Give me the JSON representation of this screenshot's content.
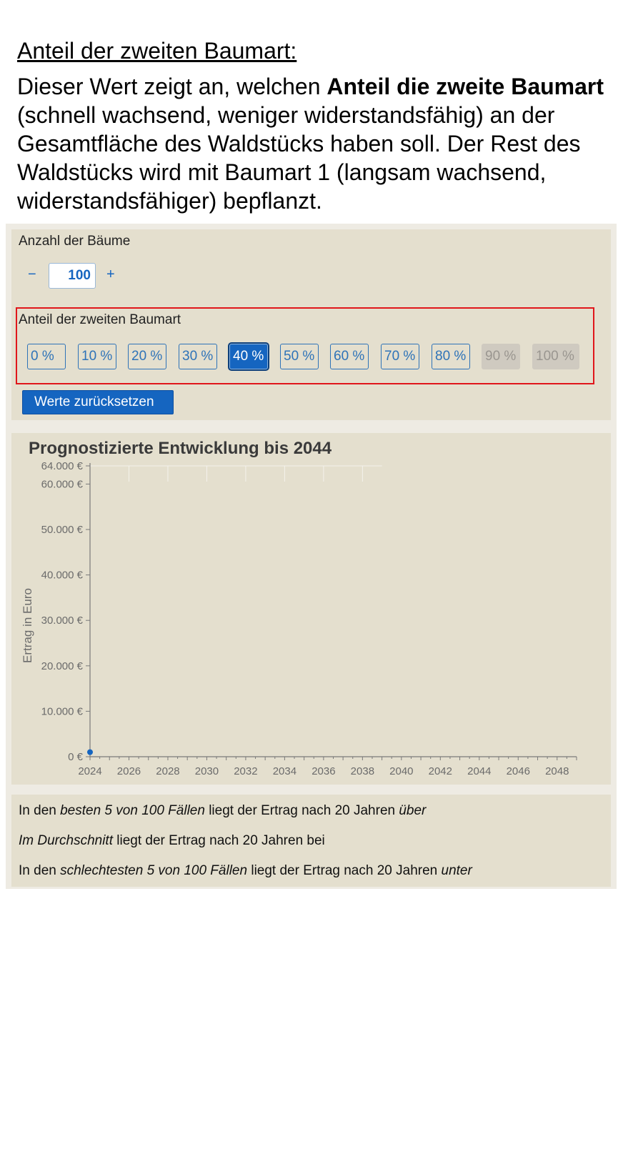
{
  "heading": "Anteil der zweiten Baumart:",
  "intro": {
    "p1": "Dieser Wert zeigt an, welchen ",
    "bold": "Anteil die zweite Baumart",
    "p2": " (schnell wachsend, weniger widerstandsfähig) an der Gesamtfläche des Waldstücks haben soll. Der Rest des Waldstücks wird mit Baumart 1 (langsam wachsend, widerstandsfähiger) bepflanzt."
  },
  "controls": {
    "trees_label": "Anzahl der Bäume",
    "minus": "−",
    "plus": "+",
    "trees_value": "100",
    "share_label": "Anteil der zweiten Baumart",
    "options": [
      {
        "label": "0 %",
        "state": "normal"
      },
      {
        "label": "10 %",
        "state": "normal"
      },
      {
        "label": "20 %",
        "state": "normal"
      },
      {
        "label": "30 %",
        "state": "normal"
      },
      {
        "label": "40 %",
        "state": "active"
      },
      {
        "label": "50 %",
        "state": "normal"
      },
      {
        "label": "60 %",
        "state": "normal"
      },
      {
        "label": "70 %",
        "state": "normal"
      },
      {
        "label": "80 %",
        "state": "normal"
      },
      {
        "label": "90 %",
        "state": "disabled"
      },
      {
        "label": "100 %",
        "state": "disabled"
      }
    ],
    "reset_label": "Werte zurücksetzen"
  },
  "chart_data": {
    "type": "line",
    "title": "Prognostizierte Entwicklung bis 2044",
    "ylabel": "Ertrag in Euro",
    "xlabel": "",
    "xlim": [
      2024,
      2049
    ],
    "ylim": [
      0,
      64000
    ],
    "x_ticks": [
      "2024",
      "2026",
      "2028",
      "2030",
      "2032",
      "2034",
      "2036",
      "2038",
      "2040",
      "2042",
      "2044",
      "2046",
      "2048"
    ],
    "y_ticks": [
      {
        "value": 0,
        "label": "0 €"
      },
      {
        "value": 10000,
        "label": "10.000 €"
      },
      {
        "value": 20000,
        "label": "20.000 €"
      },
      {
        "value": 30000,
        "label": "30.000 €"
      },
      {
        "value": 40000,
        "label": "40.000 €"
      },
      {
        "value": 50000,
        "label": "50.000 €"
      },
      {
        "value": 60000,
        "label": "60.000 €"
      },
      {
        "value": 64000,
        "label": "64.000 €"
      }
    ],
    "points": [
      {
        "x": 2024,
        "y": 1000
      }
    ],
    "point_color": "#1565c0"
  },
  "results": {
    "best_prefix": "In den ",
    "best_em": "besten 5 von 100 Fällen",
    "best_mid": " liegt der Ertrag nach 20 Jahren ",
    "best_em2": "über",
    "avg_em": "Im Durchschnitt",
    "avg_rest": " liegt der Ertrag nach 20 Jahren bei",
    "worst_prefix": "In den ",
    "worst_em": "schlechtesten 5 von 100 Fällen",
    "worst_mid": " liegt der Ertrag nach 20 Jahren ",
    "worst_em2": "unter"
  }
}
